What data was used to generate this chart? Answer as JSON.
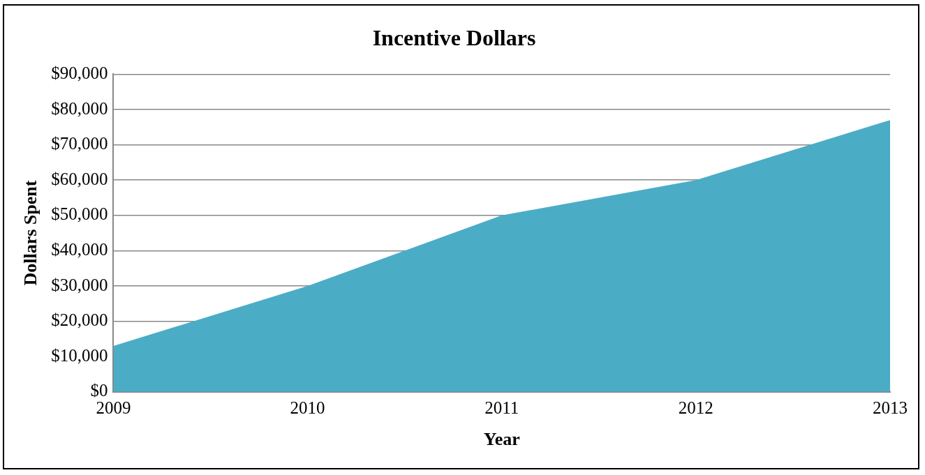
{
  "chart_data": {
    "type": "area",
    "title": "Incentive Dollars",
    "xlabel": "Year",
    "ylabel": "Dollars Spent",
    "categories": [
      "2009",
      "2010",
      "2011",
      "2012",
      "2013"
    ],
    "series": [
      {
        "color": "#4bacc6",
        "values": [
          13000,
          30000,
          50000,
          60000,
          77000
        ]
      }
    ],
    "ylim": [
      0,
      90000
    ],
    "yticks": [
      {
        "value": 0,
        "label": "$0"
      },
      {
        "value": 10000,
        "label": "$10,000"
      },
      {
        "value": 20000,
        "label": "$20,000"
      },
      {
        "value": 30000,
        "label": "$30,000"
      },
      {
        "value": 40000,
        "label": "$40,000"
      },
      {
        "value": 50000,
        "label": "$50,000"
      },
      {
        "value": 60000,
        "label": "$60,000"
      },
      {
        "value": 70000,
        "label": "$70,000"
      },
      {
        "value": 80000,
        "label": "$80,000"
      },
      {
        "value": 90000,
        "label": "$90,000"
      }
    ],
    "grid": "y",
    "legend": false
  }
}
